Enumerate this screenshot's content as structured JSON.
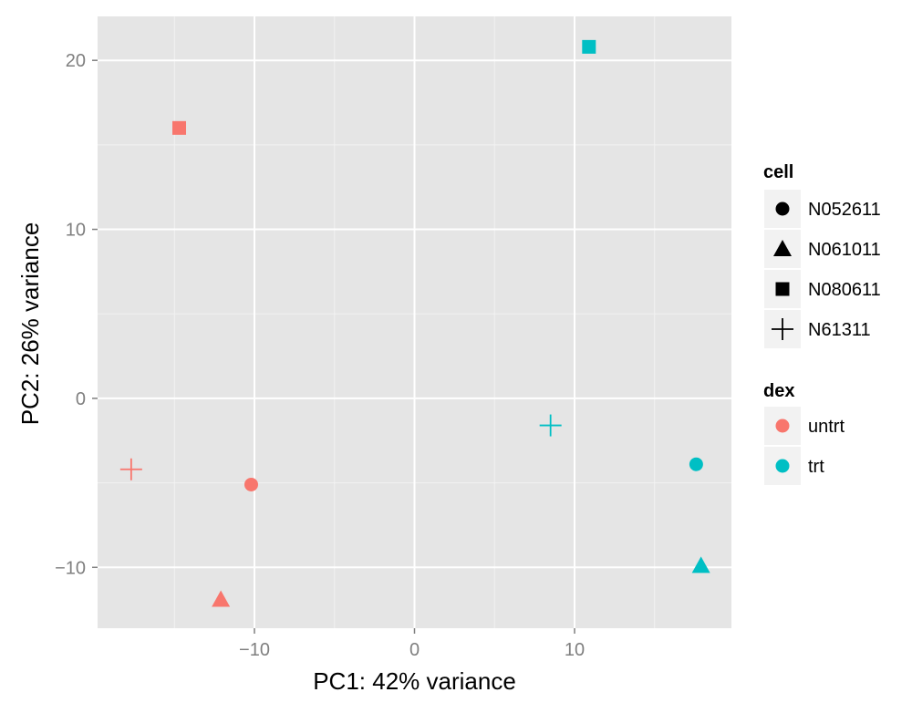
{
  "chart_data": {
    "type": "scatter",
    "title": "",
    "xlabel": "PC1: 42% variance",
    "ylabel": "PC2: 26% variance",
    "xlim": [
      -19.8,
      19.8
    ],
    "ylim": [
      -13.6,
      22.6
    ],
    "x_ticks": [
      -10,
      0,
      10
    ],
    "y_ticks": [
      -10,
      0,
      10,
      20
    ],
    "x_tick_labels": [
      "−10",
      "0",
      "10"
    ],
    "y_tick_labels": [
      "−10",
      "0",
      "10",
      "20"
    ],
    "grid": true,
    "legend_position": "right",
    "points": [
      {
        "x": -10.2,
        "y": -5.1,
        "cell": "N052611",
        "dex": "untrt"
      },
      {
        "x": -12.1,
        "y": -11.9,
        "cell": "N061011",
        "dex": "untrt"
      },
      {
        "x": -14.7,
        "y": 16.0,
        "cell": "N080611",
        "dex": "untrt"
      },
      {
        "x": -17.7,
        "y": -4.2,
        "cell": "N61311",
        "dex": "untrt"
      },
      {
        "x": 17.6,
        "y": -3.9,
        "cell": "N052611",
        "dex": "trt"
      },
      {
        "x": 17.9,
        "y": -9.9,
        "cell": "N061011",
        "dex": "trt"
      },
      {
        "x": 10.9,
        "y": 20.8,
        "cell": "N080611",
        "dex": "trt"
      },
      {
        "x": 8.5,
        "y": -1.6,
        "cell": "N61311",
        "dex": "trt"
      }
    ],
    "legends": {
      "shape": {
        "title": "cell",
        "entries": [
          {
            "label": "N052611",
            "shape": "circle"
          },
          {
            "label": "N061011",
            "shape": "triangle"
          },
          {
            "label": "N080611",
            "shape": "square"
          },
          {
            "label": "N61311",
            "shape": "plus"
          }
        ]
      },
      "color": {
        "title": "dex",
        "entries": [
          {
            "label": "untrt",
            "color": "#f8766d"
          },
          {
            "label": "trt",
            "color": "#00bfc4"
          }
        ]
      }
    }
  }
}
